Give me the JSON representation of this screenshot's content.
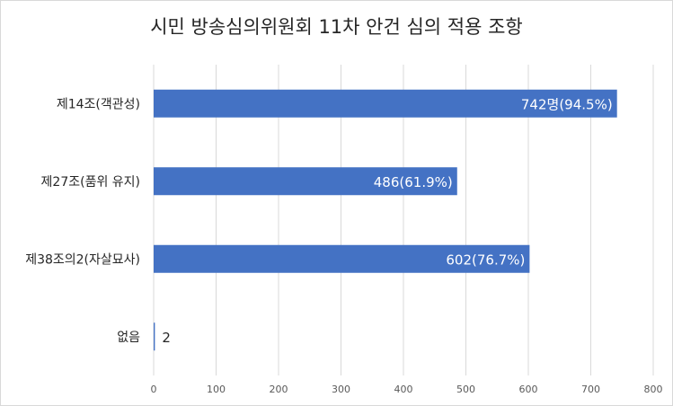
{
  "chart_data": {
    "type": "bar",
    "orientation": "horizontal",
    "title": "시민 방송심의위원회 11차 안건 심의 적용 조항",
    "categories": [
      "제14조(객관성)",
      "제27조(품위 유지)",
      "제38조의2(자살묘사)",
      "없음"
    ],
    "values": [
      742,
      486,
      602,
      2
    ],
    "data_labels": [
      "742명(94.5%)",
      "486(61.9%)",
      "602(76.7%)",
      "2"
    ],
    "xlim": [
      0,
      800
    ],
    "x_ticks": [
      "0",
      "100",
      "200",
      "300",
      "400",
      "500",
      "600",
      "700",
      "800"
    ],
    "grid": true,
    "legend": "none",
    "bar_color": "#4472c4",
    "grid_color": "#d9d9d9",
    "text_color": "#262626",
    "data_label_color": "#ffffff"
  }
}
